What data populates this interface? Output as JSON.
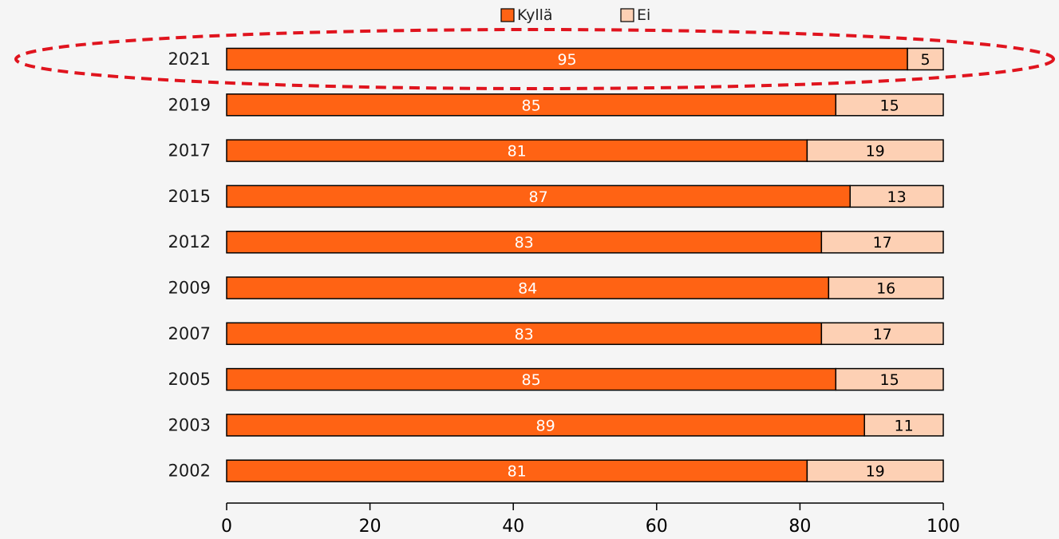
{
  "chart_data": {
    "type": "bar",
    "orientation": "horizontal",
    "stacked": true,
    "categories": [
      "2021",
      "2019",
      "2017",
      "2015",
      "2012",
      "2009",
      "2007",
      "2005",
      "2003",
      "2002"
    ],
    "series": [
      {
        "name": "Kyllä",
        "values": [
          95,
          85,
          81,
          87,
          83,
          84,
          83,
          85,
          89,
          81
        ],
        "color": "#ff6314"
      },
      {
        "name": "Ei",
        "values": [
          5,
          15,
          19,
          13,
          17,
          16,
          17,
          15,
          11,
          19
        ],
        "color": "#fdd0b4"
      }
    ],
    "xlim": [
      0,
      100
    ],
    "xticks": [
      0,
      20,
      40,
      60,
      80,
      100
    ],
    "legend_position": "top",
    "grid": false,
    "highlight": {
      "category": "2021",
      "style": "red dashed ellipse"
    },
    "colors": {
      "background": "#f5f5f5",
      "highlight": "#e0141e",
      "axis": "#000000"
    }
  }
}
